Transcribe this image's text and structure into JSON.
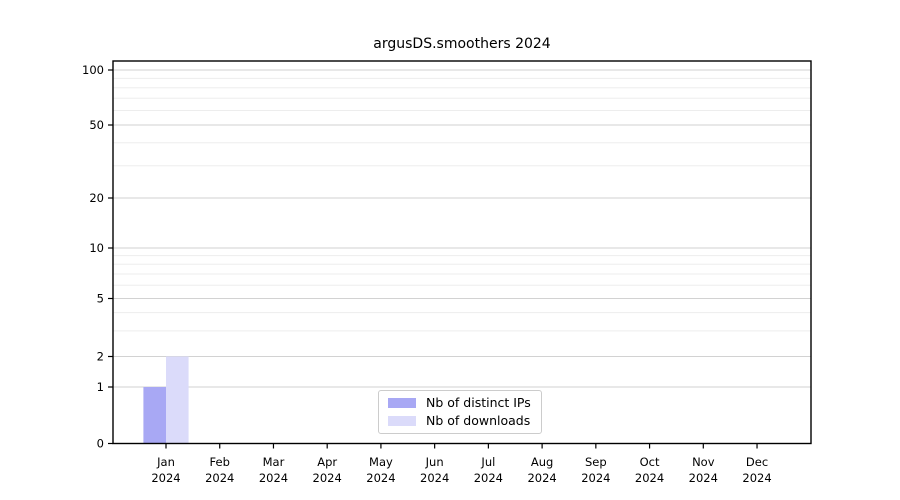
{
  "chart_data": {
    "type": "bar",
    "title": "argusDS.smoothers 2024",
    "categories": [
      "Jan 2024",
      "Feb 2024",
      "Mar 2024",
      "Apr 2024",
      "May 2024",
      "Jun 2024",
      "Jul 2024",
      "Aug 2024",
      "Sep 2024",
      "Oct 2024",
      "Nov 2024",
      "Dec 2024"
    ],
    "series": [
      {
        "name": "Nb of distinct IPs",
        "color": "#a8a8f4",
        "values": [
          1,
          0,
          0,
          0,
          0,
          0,
          0,
          0,
          0,
          0,
          0,
          0
        ]
      },
      {
        "name": "Nb of downloads",
        "color": "#dbdbfa",
        "values": [
          2,
          0,
          0,
          0,
          0,
          0,
          0,
          0,
          0,
          0,
          0,
          0
        ]
      }
    ],
    "yscale": "symlog",
    "yticks": [
      0,
      1,
      2,
      5,
      10,
      20,
      50,
      100
    ],
    "y_minor_ticks": [
      3,
      4,
      6,
      7,
      8,
      9,
      30,
      40,
      60,
      70,
      80,
      90
    ],
    "ylim": [
      0,
      110
    ],
    "xlabel": "",
    "ylabel": "",
    "grid": "both",
    "legend_position": "lower-center-inside"
  },
  "colors": {
    "spine": "#000000",
    "grid_major": "#d2d2d2",
    "grid_minor": "#ededed",
    "text": "#000000",
    "legend_border": "#cccccc"
  }
}
